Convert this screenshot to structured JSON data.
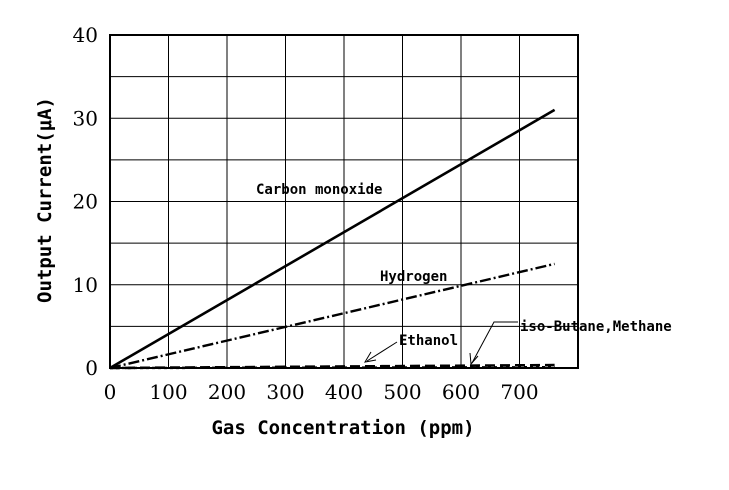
{
  "chart_data": {
    "type": "line",
    "xlabel": "Gas Concentration (ppm)",
    "ylabel": "Output Current(μA)",
    "xlim": [
      0,
      800
    ],
    "ylim": [
      0,
      40
    ],
    "x_ticks": [
      0,
      100,
      200,
      300,
      400,
      500,
      600,
      700
    ],
    "y_ticks": [
      0,
      10,
      20,
      30,
      40
    ],
    "grid": true,
    "series": [
      {
        "name": "Carbon monoxide",
        "style": "solid",
        "x": [
          0,
          760
        ],
        "y": [
          0,
          31
        ]
      },
      {
        "name": "Hydrogen",
        "style": "dash-dot",
        "x": [
          0,
          760
        ],
        "y": [
          0,
          12.5
        ]
      },
      {
        "name": "Ethanol",
        "style": "dotted",
        "x": [
          0,
          760
        ],
        "y": [
          0,
          0.1
        ]
      },
      {
        "name": "iso-Butane,Methane",
        "style": "dashed",
        "x": [
          0,
          760
        ],
        "y": [
          0,
          0.35
        ]
      }
    ],
    "annotations": {
      "carbon_monoxide": "Carbon monoxide",
      "hydrogen": "Hydrogen",
      "ethanol": "Ethanol",
      "iso_butane_methane": "iso-Butane,Methane"
    }
  }
}
